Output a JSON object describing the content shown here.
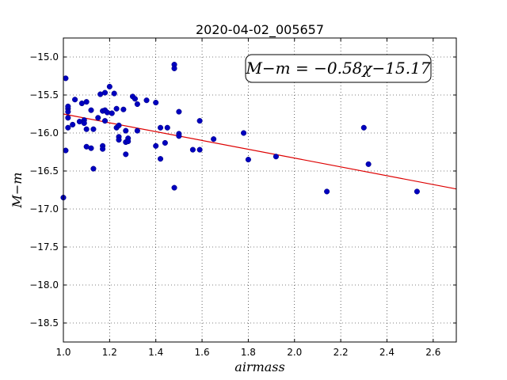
{
  "chart_data": {
    "type": "scatter",
    "title": "2020-04-02_005657",
    "xlabel": "airmass",
    "ylabel": "M−m",
    "xlim": [
      1.0,
      2.7
    ],
    "ylim": [
      -18.75,
      -14.75
    ],
    "y_inverted": true,
    "grid": true,
    "grid_style": "dotted",
    "xticks": [
      1.0,
      1.2,
      1.4,
      1.6,
      1.8,
      2.0,
      2.2,
      2.4,
      2.6
    ],
    "xtick_labels": [
      "1.0",
      "1.2",
      "1.4",
      "1.6",
      "1.8",
      "2.0",
      "2.2",
      "2.4",
      "2.6"
    ],
    "yticks": [
      -15.0,
      -15.5,
      -16.0,
      -16.5,
      -17.0,
      -17.5,
      -18.0,
      -18.5
    ],
    "ytick_labels": [
      "−15.0",
      "−15.5",
      "−16.0",
      "−16.5",
      "−17.0",
      "−17.5",
      "−18.0",
      "−18.5"
    ],
    "point_color": "#0000bf",
    "fit_color": "#dd0000",
    "fit": {
      "slope": -0.58,
      "intercept": -15.17
    },
    "annotation": "M−m = −0.58χ−15.17",
    "points": [
      [
        1.0,
        -16.85
      ],
      [
        1.01,
        -15.28
      ],
      [
        1.01,
        -16.23
      ],
      [
        1.02,
        -15.68
      ],
      [
        1.02,
        -15.72
      ],
      [
        1.02,
        -15.65
      ],
      [
        1.02,
        -15.8
      ],
      [
        1.02,
        -15.93
      ],
      [
        1.04,
        -15.89
      ],
      [
        1.05,
        -15.56
      ],
      [
        1.07,
        -15.85
      ],
      [
        1.08,
        -15.61
      ],
      [
        1.09,
        -15.83
      ],
      [
        1.09,
        -15.87
      ],
      [
        1.1,
        -15.59
      ],
      [
        1.1,
        -15.95
      ],
      [
        1.1,
        -16.18
      ],
      [
        1.12,
        -15.7
      ],
      [
        1.12,
        -16.2
      ],
      [
        1.13,
        -15.95
      ],
      [
        1.13,
        -16.47
      ],
      [
        1.15,
        -15.8
      ],
      [
        1.16,
        -15.49
      ],
      [
        1.17,
        -15.71
      ],
      [
        1.17,
        -16.17
      ],
      [
        1.17,
        -16.21
      ],
      [
        1.18,
        -15.47
      ],
      [
        1.18,
        -15.7
      ],
      [
        1.18,
        -15.84
      ],
      [
        1.19,
        -15.73
      ],
      [
        1.2,
        -15.39
      ],
      [
        1.21,
        -15.74
      ],
      [
        1.22,
        -15.48
      ],
      [
        1.23,
        -15.68
      ],
      [
        1.23,
        -15.93
      ],
      [
        1.24,
        -15.9
      ],
      [
        1.24,
        -16.05
      ],
      [
        1.24,
        -16.09
      ],
      [
        1.26,
        -15.69
      ],
      [
        1.27,
        -15.97
      ],
      [
        1.27,
        -16.12
      ],
      [
        1.27,
        -16.28
      ],
      [
        1.28,
        -16.07
      ],
      [
        1.28,
        -16.11
      ],
      [
        1.3,
        -15.52
      ],
      [
        1.31,
        -15.55
      ],
      [
        1.32,
        -15.62
      ],
      [
        1.32,
        -15.97
      ],
      [
        1.36,
        -15.57
      ],
      [
        1.4,
        -15.6
      ],
      [
        1.4,
        -16.17
      ],
      [
        1.42,
        -15.93
      ],
      [
        1.42,
        -16.34
      ],
      [
        1.44,
        -16.13
      ],
      [
        1.45,
        -15.93
      ],
      [
        1.48,
        -15.1
      ],
      [
        1.48,
        -15.15
      ],
      [
        1.48,
        -16.72
      ],
      [
        1.5,
        -15.72
      ],
      [
        1.5,
        -16.01
      ],
      [
        1.5,
        -16.04
      ],
      [
        1.56,
        -16.22
      ],
      [
        1.59,
        -15.84
      ],
      [
        1.59,
        -16.22
      ],
      [
        1.65,
        -16.08
      ],
      [
        1.78,
        -16.0
      ],
      [
        1.8,
        -16.35
      ],
      [
        1.92,
        -16.31
      ],
      [
        2.14,
        -16.77
      ],
      [
        2.3,
        -15.93
      ],
      [
        2.32,
        -16.41
      ],
      [
        2.53,
        -16.77
      ]
    ]
  }
}
